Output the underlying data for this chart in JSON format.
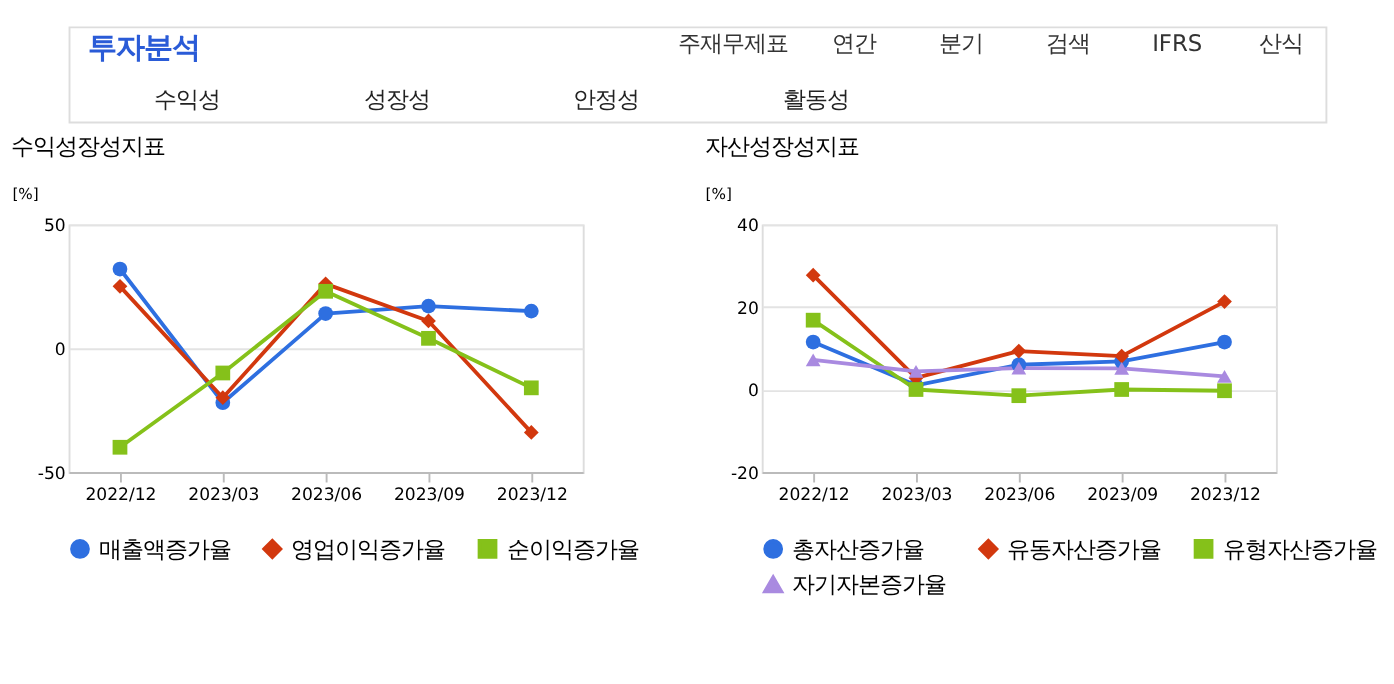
{
  "chart_data": [
    {
      "type": "other",
      "annotations": [
        "투자분석",
        "주재무제표",
        "연간",
        "분기",
        "검색",
        "IFRS",
        "산식",
        "수익성",
        "성장성",
        "안정성",
        "활동성"
      ]
    },
    {
      "type": "line",
      "title": "수익성장성지표",
      "ylabel": "[%]",
      "categories": [
        "2022/12",
        "2023/03",
        "2023/06",
        "2023/09",
        "2023/12"
      ],
      "ylim": [
        -50,
        50
      ],
      "yticks": [
        -50,
        0,
        50
      ],
      "grid": "y",
      "legend": "bottom",
      "series": [
        {
          "name": "매출액증가율",
          "color": "#2e6fe0",
          "marker": "circle",
          "values": [
            32,
            -22,
            14,
            17,
            15
          ]
        },
        {
          "name": "영업이익증가율",
          "color": "#d2380e",
          "marker": "diamond",
          "values": [
            25,
            -20,
            26,
            11,
            -34
          ]
        },
        {
          "name": "순이익증가율",
          "color": "#85c11a",
          "marker": "square",
          "values": [
            -40,
            -10,
            23,
            4,
            -16
          ]
        }
      ]
    },
    {
      "type": "line",
      "title": "자산성장성지표",
      "ylabel": "[%]",
      "categories": [
        "2022/12",
        "2023/03",
        "2023/06",
        "2023/09",
        "2023/12"
      ],
      "ylim": [
        -20,
        40
      ],
      "yticks": [
        -20,
        0,
        20,
        40
      ],
      "grid": "y",
      "legend": "bottom",
      "series": [
        {
          "name": "총자산증가율",
          "color": "#2e6fe0",
          "marker": "circle",
          "values": [
            11.5,
            1,
            6,
            6.8,
            11.5
          ]
        },
        {
          "name": "유동자산증가율",
          "color": "#d2380e",
          "marker": "diamond",
          "values": [
            27.7,
            2.8,
            9.3,
            8.1,
            21.3
          ]
        },
        {
          "name": "유형자산증가율",
          "color": "#85c11a",
          "marker": "square",
          "values": [
            16.8,
            0,
            -1.5,
            0,
            -0.3
          ]
        },
        {
          "name": "자기자본증가율",
          "color": "#a98ae0",
          "marker": "triangle",
          "values": [
            7.2,
            4.4,
            5.2,
            5.1,
            3.2
          ]
        }
      ]
    }
  ]
}
